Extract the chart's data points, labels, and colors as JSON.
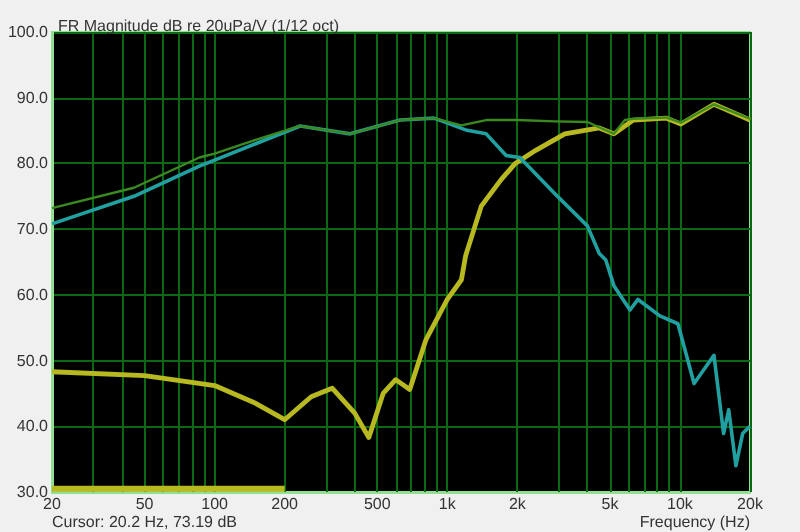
{
  "chart_data": {
    "type": "line",
    "title": "FR Magnitude dB re 20uPa/V (1/12 oct)",
    "xlabel": "Frequency (Hz)",
    "annotations": [
      "Cursor: 20.2 Hz, 73.19 dB"
    ],
    "log": "x",
    "grid": true,
    "marker": "none",
    "line_style": "solid",
    "xlim": [
      20,
      20000
    ],
    "ylim": [
      30,
      100
    ],
    "xticks": [
      20,
      {
        "value": 30,
        "label": null
      },
      {
        "value": 40,
        "label": null
      },
      50,
      {
        "value": 60,
        "label": null
      },
      {
        "value": 70,
        "label": null
      },
      {
        "value": 80,
        "label": null
      },
      {
        "value": 90,
        "label": null
      },
      100,
      200,
      {
        "value": 300,
        "label": null
      },
      {
        "value": 400,
        "label": null
      },
      500,
      {
        "value": 600,
        "label": null
      },
      {
        "value": 700,
        "label": null
      },
      {
        "value": 800,
        "label": null
      },
      {
        "value": 900,
        "label": null
      },
      {
        "value": 1000,
        "label": "1k"
      },
      {
        "value": 2000,
        "label": "2k"
      },
      {
        "value": 3000,
        "label": null
      },
      {
        "value": 4000,
        "label": null
      },
      {
        "value": 5000,
        "label": "5k"
      },
      {
        "value": 6000,
        "label": null
      },
      {
        "value": 7000,
        "label": null
      },
      {
        "value": 8000,
        "label": null
      },
      {
        "value": 9000,
        "label": null
      },
      {
        "value": 10000,
        "label": "10k"
      },
      {
        "value": 20000,
        "label": "20k"
      }
    ],
    "yticks": [
      {
        "value": 30,
        "label": "30.0"
      },
      {
        "value": 40,
        "label": "40.0"
      },
      {
        "value": 50,
        "label": "50.0"
      },
      {
        "value": 60,
        "label": "60.0"
      },
      {
        "value": 70,
        "label": "70.0"
      },
      {
        "value": 80,
        "label": "80.0"
      },
      {
        "value": 90,
        "label": "90.0"
      },
      {
        "value": 100,
        "label": "100.0"
      }
    ],
    "series": [
      {
        "color": "#b8b820",
        "x": [
          20,
          200
        ],
        "values": [
          30.5,
          30.5
        ]
      },
      {
        "color": "#b8b820",
        "x": [
          20,
          50,
          100,
          150,
          200,
          260,
          320,
          400,
          460,
          530,
          600,
          690,
          810,
          1000,
          1150,
          1200,
          1400,
          1700,
          1960,
          2400,
          3200,
          4500,
          5200,
          6300,
          8700,
          10100,
          14000,
          20000
        ],
        "values": [
          48.3,
          47.7,
          46.2,
          43.5,
          41,
          44.5,
          45.8,
          42,
          38.3,
          45,
          47.1,
          45.6,
          53.2,
          59.3,
          62.3,
          66,
          73.5,
          77.5,
          80,
          82,
          84.5,
          85.4,
          84.5,
          86.6,
          86.9,
          86,
          89,
          86.6
        ]
      },
      {
        "color": "#20a0a0",
        "x": [
          20,
          45,
          86,
          100,
          150,
          233,
          382,
          627,
          877,
          1200,
          1470,
          1790,
          2050,
          2900,
          4000,
          4500,
          4800,
          5200,
          6100,
          6600,
          8200,
          9800,
          11500,
          14000,
          15400,
          16200,
          17400,
          18600,
          20000
        ],
        "values": [
          70.8,
          75,
          79.6,
          80.5,
          83,
          85.7,
          84.5,
          86.6,
          86.9,
          85.1,
          84.5,
          81.2,
          80.9,
          75.4,
          70.5,
          66.3,
          65.3,
          61.4,
          57.7,
          59.3,
          56.8,
          55.6,
          46.5,
          50.8,
          38.9,
          42.5,
          34,
          38.9,
          40
        ]
      },
      {
        "color": "#3a8a20",
        "x": [
          20,
          45,
          86,
          100,
          150,
          233,
          382,
          627,
          877,
          1150,
          1470,
          2000,
          2900,
          4000,
          5200,
          5800,
          6300,
          8700,
          10100,
          14000,
          20000
        ],
        "values": [
          73.2,
          76.3,
          80.9,
          81.5,
          83.6,
          85.7,
          84.5,
          86.6,
          86.9,
          85.8,
          86.6,
          86.6,
          86.4,
          86.3,
          84.5,
          86.6,
          86.8,
          87,
          86.2,
          89,
          86.8
        ]
      }
    ]
  }
}
